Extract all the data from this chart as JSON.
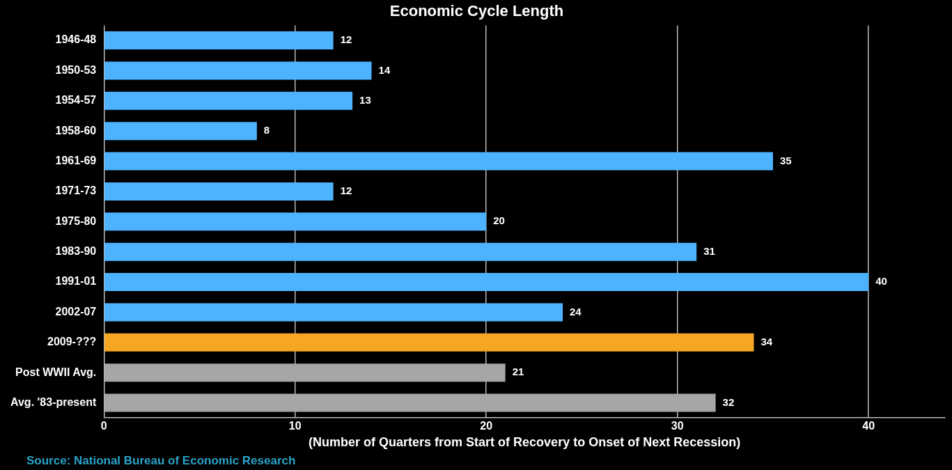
{
  "chart_data": {
    "type": "bar",
    "orientation": "horizontal",
    "title": "Economic Cycle Length",
    "xlabel": "(Number of Quarters from Start of Recovery to Onset of Next Recession)",
    "categories": [
      "1946-48",
      "1950-53",
      "1954-57",
      "1958-60",
      "1961-69",
      "1971-73",
      "1975-80",
      "1983-90",
      "1991-01",
      "2002-07",
      "2009-???",
      "Post WWII Avg.",
      "Avg. '83-present"
    ],
    "values": [
      12,
      14,
      13,
      8,
      35,
      12,
      20,
      31,
      40,
      24,
      34,
      21,
      32
    ],
    "colors": [
      "#4db3ff",
      "#4db3ff",
      "#4db3ff",
      "#4db3ff",
      "#4db3ff",
      "#4db3ff",
      "#4db3ff",
      "#4db3ff",
      "#4db3ff",
      "#4db3ff",
      "#f5a623",
      "#a6a6a6",
      "#a6a6a6"
    ],
    "xlim": [
      0,
      44
    ],
    "xticks": [
      0,
      10,
      20,
      30,
      40
    ],
    "grid": "x",
    "data_labels": true,
    "legend": false,
    "annotations": [
      "Source: National Bureau of Economic Research"
    ]
  }
}
